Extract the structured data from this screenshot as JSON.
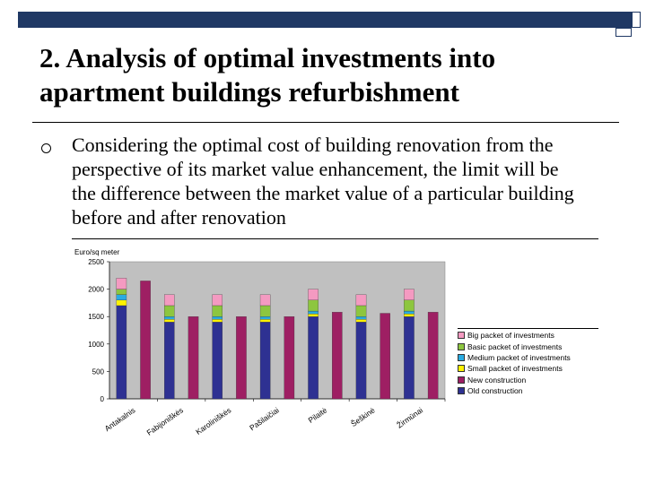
{
  "slide": {
    "title_lines": [
      "2. Analysis of optimal investments into",
      "apartment buildings refurbishment"
    ],
    "body_lines": [
      "Considering the optimal cost of building renovation from the",
      "perspective of its market value enhancement, the limit will be",
      "the difference between the market value of a particular building",
      "before and after renovation"
    ],
    "bullet_icon": "hollow-circle-bullet-icon",
    "accent_color": "#1f3864"
  },
  "chart_data": {
    "type": "bar",
    "stacked": true,
    "ylabel": "Euro/sq meter",
    "ylim": [
      0,
      2500
    ],
    "yticks": [
      0,
      500,
      1000,
      1500,
      2000,
      2500
    ],
    "grid": false,
    "plot_background": "#c0c0c0",
    "legend_position": "right",
    "categories": [
      "Antakalnis",
      "Fabijoniškės",
      "Karoliniškės",
      "Pašilaičiai",
      "Pilaitė",
      "Šeškinė",
      "Žirmūnai"
    ],
    "bars": [
      {
        "category_index": 0,
        "kind": "renovation",
        "segments": [
          1700,
          100,
          100,
          100,
          200
        ]
      },
      {
        "category_index": 0,
        "kind": "new",
        "value": 2150
      },
      {
        "category_index": 1,
        "kind": "renovation",
        "segments": [
          1400,
          50,
          50,
          200,
          200
        ]
      },
      {
        "category_index": 1,
        "kind": "new",
        "value": 1500
      },
      {
        "category_index": 2,
        "kind": "renovation",
        "segments": [
          1400,
          50,
          50,
          200,
          200
        ]
      },
      {
        "category_index": 2,
        "kind": "new",
        "value": 1500
      },
      {
        "category_index": 3,
        "kind": "renovation",
        "segments": [
          1400,
          50,
          50,
          200,
          200
        ]
      },
      {
        "category_index": 3,
        "kind": "new",
        "value": 1500
      },
      {
        "category_index": 4,
        "kind": "renovation",
        "segments": [
          1500,
          50,
          50,
          200,
          200
        ]
      },
      {
        "category_index": 4,
        "kind": "new",
        "value": 1580
      },
      {
        "category_index": 5,
        "kind": "renovation",
        "segments": [
          1400,
          50,
          50,
          200,
          200
        ]
      },
      {
        "category_index": 5,
        "kind": "new",
        "value": 1560
      },
      {
        "category_index": 6,
        "kind": "renovation",
        "segments": [
          1500,
          50,
          50,
          200,
          200
        ]
      },
      {
        "category_index": 6,
        "kind": "new",
        "value": 1580
      }
    ],
    "series": [
      {
        "name": "Old construction",
        "color": "#2e3192"
      },
      {
        "name": "Small packet of investments",
        "color": "#fff200"
      },
      {
        "name": "Medium packet of investments",
        "color": "#29abe2"
      },
      {
        "name": "Basic packet of investments",
        "color": "#8dc63f"
      },
      {
        "name": "Big packet of investments",
        "color": "#f49ac1"
      }
    ],
    "new_construction": {
      "name": "New construction",
      "color": "#9e1f63"
    },
    "legend_order": [
      "Big packet of investments",
      "Basic packet of investments",
      "Medium packet of investments",
      "Small packet of investments",
      "New construction",
      "Old construction"
    ]
  }
}
